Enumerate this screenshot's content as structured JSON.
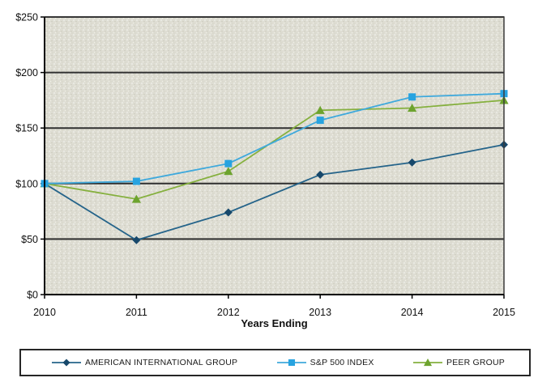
{
  "chart_data": {
    "type": "line",
    "xlabel": "Years Ending",
    "ylabel": "",
    "x_categories": [
      "2010",
      "2011",
      "2012",
      "2013",
      "2014",
      "2015"
    ],
    "y_ticks": [
      {
        "value": 0,
        "label": "$0"
      },
      {
        "value": 50,
        "label": "$50"
      },
      {
        "value": 100,
        "label": "$100"
      },
      {
        "value": 150,
        "label": "$150"
      },
      {
        "value": 200,
        "label": "$200"
      },
      {
        "value": 250,
        "label": "$250"
      }
    ],
    "ylim": [
      0,
      250
    ],
    "grid": "horizontal",
    "legend_position": "bottom",
    "plot_bg": "#deddd3",
    "grid_color": "#2f2f2f",
    "axis_color": "#000000",
    "series": [
      {
        "name": "AMERICAN INTERNATIONAL GROUP",
        "marker": "diamond",
        "line_color": "#25648a",
        "marker_color": "#17486b",
        "values": [
          100,
          49,
          74,
          108,
          119,
          135
        ]
      },
      {
        "name": "S&P 500 INDEX",
        "marker": "square",
        "line_color": "#3fa9dc",
        "marker_color": "#27a3e0",
        "values": [
          100,
          102,
          118,
          157,
          178,
          181
        ]
      },
      {
        "name": "PEER GROUP",
        "marker": "triangle",
        "line_color": "#85b03e",
        "marker_color": "#6da32e",
        "values": [
          100,
          86,
          111,
          166,
          168,
          175
        ]
      }
    ]
  }
}
